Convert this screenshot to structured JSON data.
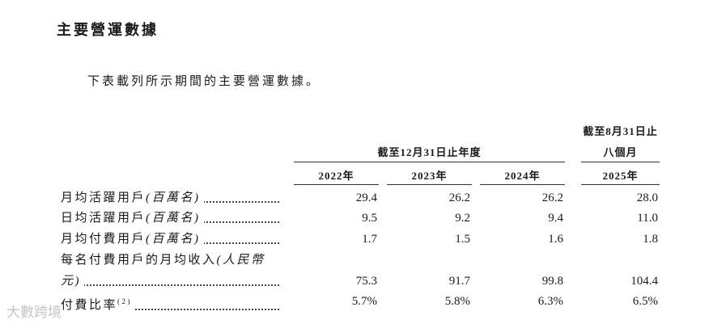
{
  "title": "主要營運數據",
  "intro": "下表載列所示期間的主要營運數據。",
  "table": {
    "group_headers": [
      "截至12月31日止年度",
      [
        "截至8月31日止",
        "八個月"
      ]
    ],
    "years": [
      "2022年",
      "2023年",
      "2024年",
      "2025年"
    ],
    "rows": [
      {
        "label": "月均活躍用戶",
        "unit": "(百萬名)",
        "values": [
          "29.4",
          "26.2",
          "26.2",
          "28.0"
        ]
      },
      {
        "label": "日均活躍用戶",
        "unit": "(百萬名)",
        "values": [
          "9.5",
          "9.2",
          "9.4",
          "11.0"
        ]
      },
      {
        "label": "月均付費用戶",
        "unit": "(百萬名)",
        "values": [
          "1.7",
          "1.5",
          "1.6",
          "1.8"
        ]
      },
      {
        "label": "每名付費用戶的月均收入",
        "unit": "(人民幣元)",
        "values": [
          "75.3",
          "91.7",
          "99.8",
          "104.4"
        ]
      },
      {
        "label": "付費比率",
        "note": "(2)",
        "values": [
          "5.7%",
          "5.8%",
          "6.3%",
          "6.5%"
        ]
      }
    ]
  },
  "watermark": "大數跨境"
}
